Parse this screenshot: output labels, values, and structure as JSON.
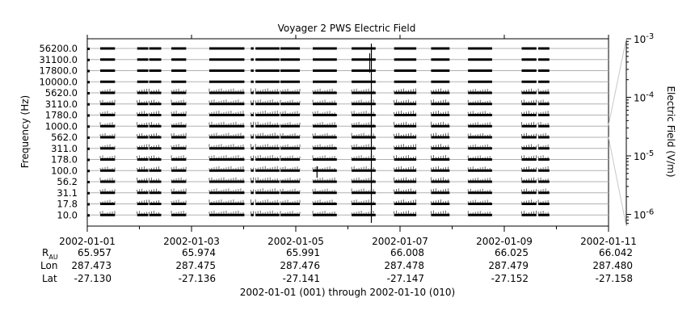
{
  "chart_data": {
    "type": "heatmap",
    "title": "Voyager 2 PWS Electric Field",
    "ylabel": "Frequency (Hz)",
    "colorbar_label": "Electric Field (V/m)",
    "colorbar_scale": "log",
    "colorbar_range": [
      "1e-6",
      "1e-3"
    ],
    "colorbar_ticks": [
      {
        "base": "10",
        "exp": "-6",
        "value": 1e-06
      },
      {
        "base": "10",
        "exp": "-5",
        "value": 1e-05
      },
      {
        "base": "10",
        "exp": "-4",
        "value": 0.0001
      },
      {
        "base": "10",
        "exp": "-3",
        "value": 0.001
      }
    ],
    "channels": [
      "56200.0",
      "31100.0",
      "17800.0",
      "10000.0",
      "5620.0",
      "3110.0",
      "1780.0",
      "1000.0",
      "562.0",
      "311.0",
      "178.0",
      "100.0",
      "56.2",
      "31.1",
      "17.8",
      "10.0"
    ],
    "x_range_days": [
      0,
      10
    ],
    "x_ticks": [
      {
        "label": "2002-01-01",
        "day": 0
      },
      {
        "label": "2002-01-03",
        "day": 2
      },
      {
        "label": "2002-01-05",
        "day": 4
      },
      {
        "label": "2002-01-07",
        "day": 6
      },
      {
        "label": "2002-01-09",
        "day": 8
      },
      {
        "label": "2002-01-11",
        "day": 10
      }
    ],
    "minor_ticks_days": [
      1,
      3,
      5,
      7,
      9
    ],
    "data_segments_days": [
      [
        0.7,
        1.5
      ],
      [
        2.7,
        3.3
      ],
      [
        3.35,
        4.0
      ],
      [
        4.55,
        5.35
      ],
      [
        6.6,
        8.5
      ],
      [
        8.85,
        9.0
      ],
      [
        9.1,
        10.4
      ],
      [
        10.45,
        11.5
      ],
      [
        12.2,
        13.5
      ],
      [
        14.3,
        15.6
      ],
      [
        16.6,
        17.8
      ],
      [
        18.6,
        19.6
      ],
      [
        20.6,
        21.9
      ],
      [
        23.5,
        24.3
      ],
      [
        24.4,
        25.0
      ]
    ],
    "burst_day": 5.45,
    "burst_span_days": [
      5.4,
      5.53
    ],
    "ephemeris": {
      "labels": {
        "r_main": "R",
        "r_sub": "AU",
        "lon": "Lon",
        "lat": "Lat"
      },
      "columns": [
        {
          "r": "65.957",
          "lon": "287.473",
          "lat": "-27.130"
        },
        {
          "r": "65.974",
          "lon": "287.475",
          "lat": "-27.136"
        },
        {
          "r": "65.991",
          "lon": "287.476",
          "lat": "-27.141"
        },
        {
          "r": "66.008",
          "lon": "287.478",
          "lat": "-27.147"
        },
        {
          "r": "66.025",
          "lon": "287.479",
          "lat": "-27.152"
        },
        {
          "r": "66.042",
          "lon": "287.480",
          "lat": "-27.158"
        }
      ]
    },
    "date_range_label": "2002-01-01 (001) through 2002-01-10 (010)"
  }
}
